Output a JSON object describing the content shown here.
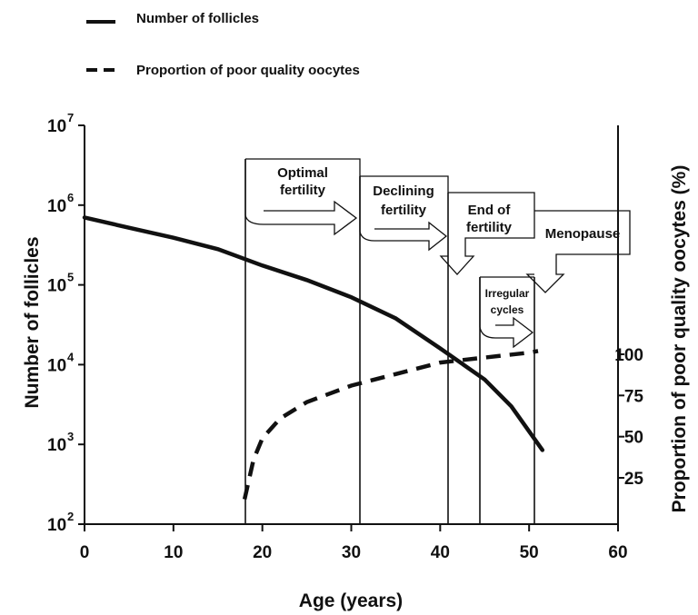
{
  "chart_data": {
    "type": "line",
    "x": {
      "label": "Age (years)",
      "range": [
        0,
        60
      ],
      "ticks": [
        "0",
        "10",
        "20",
        "30",
        "40",
        "50",
        "60"
      ]
    },
    "y_left": {
      "label": "Number of follicles",
      "scale": "log",
      "range": [
        100,
        10000000
      ],
      "ticks": [
        {
          "base": "10",
          "exp": "2"
        },
        {
          "base": "10",
          "exp": "3"
        },
        {
          "base": "10",
          "exp": "4"
        },
        {
          "base": "10",
          "exp": "5"
        },
        {
          "base": "10",
          "exp": "6"
        },
        {
          "base": "10",
          "exp": "7"
        }
      ]
    },
    "y_right": {
      "label": "Proportion of poor quality oocytes (%)",
      "ticks": [
        "25",
        "50",
        "75",
        "100"
      ]
    },
    "series": [
      {
        "name": "Number of follicles",
        "style": "solid",
        "axis": "left",
        "points": [
          [
            0,
            700000
          ],
          [
            5,
            520000
          ],
          [
            10,
            390000
          ],
          [
            15,
            280000
          ],
          [
            20,
            175000
          ],
          [
            25,
            115000
          ],
          [
            30,
            70000
          ],
          [
            35,
            38000
          ],
          [
            40,
            16000
          ],
          [
            45,
            6500
          ],
          [
            48,
            3000
          ],
          [
            51.5,
            850
          ]
        ]
      },
      {
        "name": "Proportion of poor quality oocytes",
        "style": "dashed",
        "axis": "right",
        "points": [
          [
            18,
            12
          ],
          [
            19,
            36
          ],
          [
            20,
            49
          ],
          [
            22,
            61
          ],
          [
            25,
            71
          ],
          [
            30,
            81
          ],
          [
            35,
            88
          ],
          [
            40,
            95
          ],
          [
            45,
            98
          ],
          [
            50,
            101
          ],
          [
            51,
            102
          ]
        ]
      }
    ],
    "phase_boundaries": [
      18,
      31,
      41,
      45,
      51
    ],
    "annotations": {
      "optimal": [
        "Optimal",
        "fertility"
      ],
      "declining": [
        "Declining",
        "fertility"
      ],
      "end": [
        "End of",
        "fertility"
      ],
      "irregular": [
        "Irregular",
        "cycles"
      ],
      "menopause": "Menopause"
    },
    "colors": {
      "ink": "#111111",
      "background": "#ffffff"
    },
    "legend_position": "top-left",
    "grid": false
  }
}
